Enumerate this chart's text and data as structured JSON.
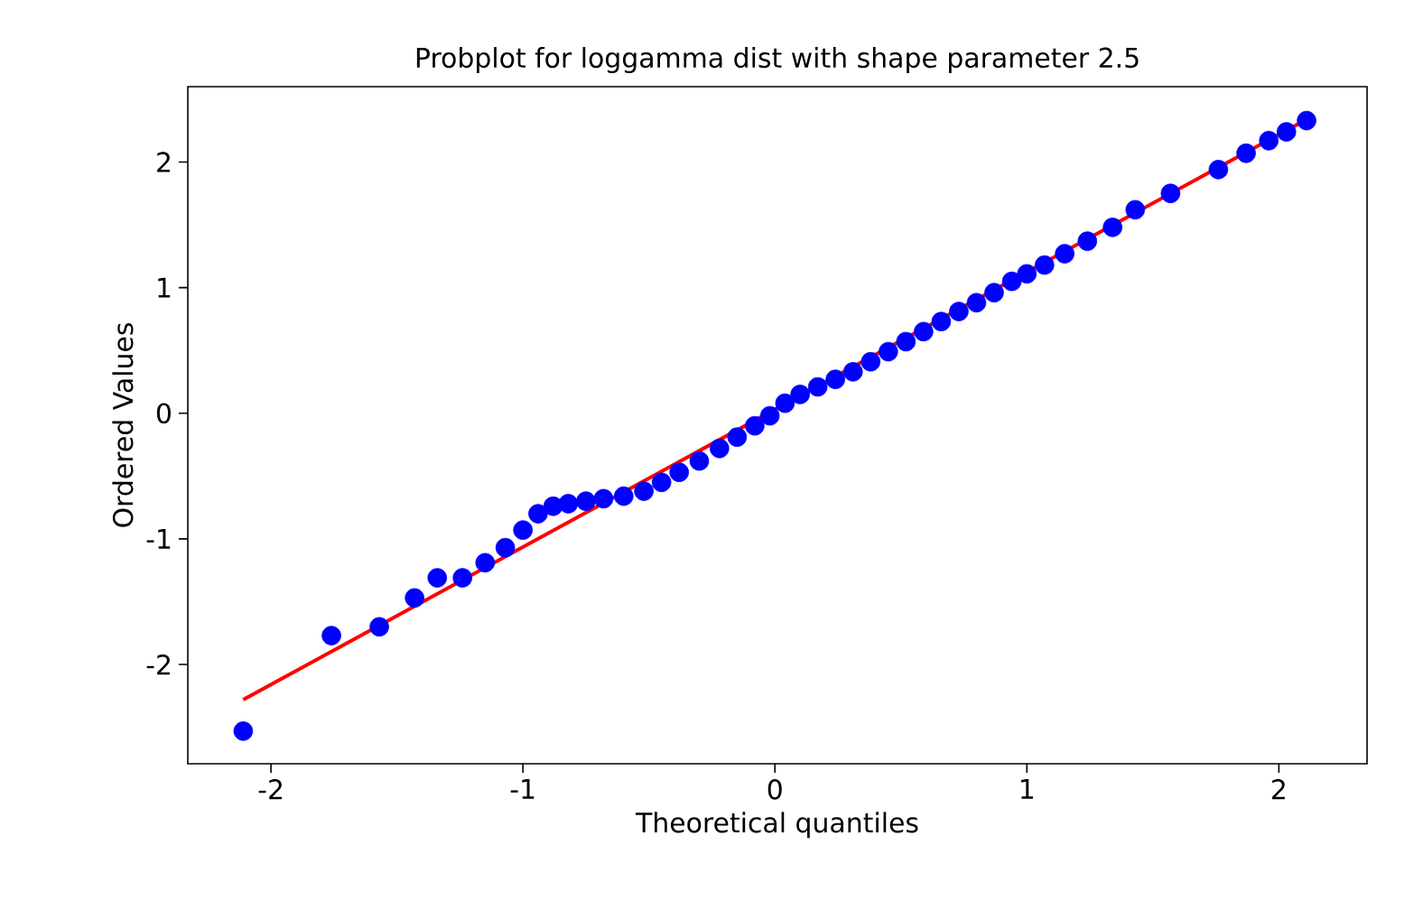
{
  "chart_data": {
    "type": "scatter",
    "title": "Probplot for loggamma dist with shape parameter 2.5",
    "xlabel": "Theoretical quantiles",
    "ylabel": "Ordered Values",
    "marker": "circle",
    "xlim": [
      -2.33,
      2.35
    ],
    "ylim": [
      -2.79,
      2.6
    ],
    "xticks": [
      -2,
      -1,
      0,
      1,
      2
    ],
    "yticks": [
      -2,
      -1,
      0,
      1,
      2
    ],
    "series": [
      {
        "color": "#0000ff",
        "x": [
          -2.11,
          -1.76,
          -1.57,
          -1.43,
          -1.34,
          -1.24,
          -1.15,
          -1.07,
          -1.0,
          -0.94,
          -0.88,
          -0.82,
          -0.75,
          -0.68,
          -0.6,
          -0.52,
          -0.45,
          -0.38,
          -0.3,
          -0.22,
          -0.15,
          -0.08,
          -0.02,
          0.04,
          0.1,
          0.17,
          0.24,
          0.31,
          0.38,
          0.45,
          0.52,
          0.59,
          0.66,
          0.73,
          0.8,
          0.87,
          0.94,
          1.0,
          1.07,
          1.15,
          1.24,
          1.34,
          1.43,
          1.57,
          1.76,
          1.87,
          1.96,
          2.03,
          2.11
        ],
        "values": [
          -2.53,
          -1.77,
          -1.7,
          -1.47,
          -1.31,
          -1.31,
          -1.19,
          -1.07,
          -0.93,
          -0.8,
          -0.74,
          -0.72,
          -0.7,
          -0.68,
          -0.66,
          -0.62,
          -0.55,
          -0.47,
          -0.38,
          -0.28,
          -0.19,
          -0.1,
          -0.02,
          0.08,
          0.15,
          0.21,
          0.27,
          0.33,
          0.41,
          0.49,
          0.57,
          0.65,
          0.73,
          0.81,
          0.88,
          0.96,
          1.05,
          1.11,
          1.18,
          1.27,
          1.37,
          1.48,
          1.62,
          1.75,
          1.94,
          2.07,
          2.17,
          2.24,
          2.33
        ]
      },
      {
        "type": "line",
        "color": "#ff0000",
        "marker": "none",
        "x": [
          -2.11,
          2.11
        ],
        "values": [
          -2.28,
          2.34
        ]
      }
    ]
  }
}
